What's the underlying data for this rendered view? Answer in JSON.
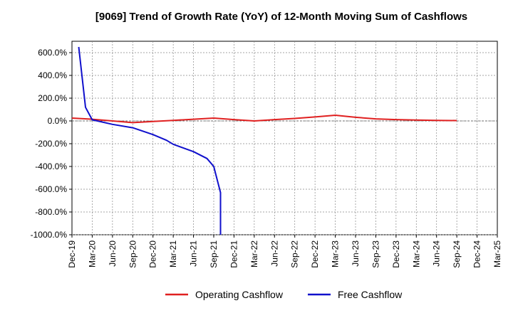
{
  "chart_data": {
    "type": "line",
    "title": "[9069]  Trend of Growth Rate (YoY) of 12-Month Moving Sum of Cashflows",
    "xlabel": "",
    "ylabel": "",
    "x_ticks": [
      "Dec-19",
      "Mar-20",
      "Jun-20",
      "Sep-20",
      "Dec-20",
      "Mar-21",
      "Jun-21",
      "Sep-21",
      "Dec-21",
      "Mar-22",
      "Jun-22",
      "Sep-22",
      "Dec-22",
      "Mar-23",
      "Jun-23",
      "Sep-23",
      "Dec-23",
      "Mar-24",
      "Jun-24",
      "Sep-24",
      "Dec-24",
      "Mar-25"
    ],
    "y_ticks": [
      "600.0%",
      "400.0%",
      "200.0%",
      "0.0%",
      "-200.0%",
      "-400.0%",
      "-600.0%",
      "-800.0%",
      "-1000.0%"
    ],
    "y_tick_values": [
      600,
      400,
      200,
      0,
      -200,
      -400,
      -600,
      -800,
      -1000
    ],
    "ylim": [
      -1000,
      700
    ],
    "grid": true,
    "legend_position": "bottom",
    "series": [
      {
        "name": "Operating Cashflow",
        "color": "#e02020",
        "points": [
          [
            "Dec-19",
            25
          ],
          [
            "Mar-20",
            15
          ],
          [
            "Jun-20",
            0
          ],
          [
            "Sep-20",
            -15
          ],
          [
            "Dec-20",
            -5
          ],
          [
            "Mar-21",
            5
          ],
          [
            "Jun-21",
            15
          ],
          [
            "Sep-21",
            25
          ],
          [
            "Dec-21",
            12
          ],
          [
            "Mar-22",
            0
          ],
          [
            "Jun-22",
            12
          ],
          [
            "Sep-22",
            22
          ],
          [
            "Dec-22",
            35
          ],
          [
            "Mar-23",
            50
          ],
          [
            "Jun-23",
            32
          ],
          [
            "Sep-23",
            18
          ],
          [
            "Dec-23",
            12
          ],
          [
            "Mar-24",
            8
          ],
          [
            "Jun-24",
            5
          ],
          [
            "Sep-24",
            3
          ]
        ]
      },
      {
        "name": "Free Cashflow",
        "color": "#1010cc",
        "points": [
          [
            "Jan-20",
            650
          ],
          [
            "Feb-20",
            120
          ],
          [
            "Mar-20",
            10
          ],
          [
            "Jun-20",
            -30
          ],
          [
            "Sep-20",
            -60
          ],
          [
            "Dec-20",
            -120
          ],
          [
            "Feb-21",
            -170
          ],
          [
            "Mar-21",
            -205
          ],
          [
            "Jun-21",
            -270
          ],
          [
            "Aug-21",
            -330
          ],
          [
            "Sep-21",
            -400
          ],
          [
            "Oct-21",
            -630
          ],
          [
            "Oct-21",
            -1000
          ]
        ]
      }
    ]
  }
}
